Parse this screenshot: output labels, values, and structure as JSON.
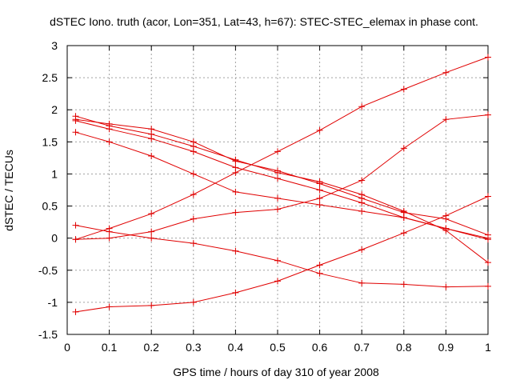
{
  "chart_data": {
    "type": "line",
    "title": "dSTEC Iono. truth (acor, Lon=351, Lat=43, h=67): STEC-STEC_elemax in phase cont.",
    "xlabel": "GPS time / hours of day 310 of year 2008",
    "ylabel": "dSTEC  / TECUs",
    "xlim": [
      0,
      1
    ],
    "ylim": [
      -1.5,
      3
    ],
    "xticks": [
      0,
      0.1,
      0.2,
      0.3,
      0.4,
      0.5,
      0.6,
      0.7,
      0.8,
      0.9,
      1
    ],
    "xtick_labels": [
      "0",
      "0.1",
      "0.2",
      "0.3",
      "0.4",
      "0.5",
      "0.6",
      "0.7",
      "0.8",
      "0.9",
      "1"
    ],
    "yticks": [
      -1.5,
      -1,
      -0.5,
      0,
      0.5,
      1,
      1.5,
      2,
      2.5,
      3
    ],
    "ytick_labels": [
      "-1.5",
      "-1",
      "-0.5",
      "0",
      "0.5",
      "1",
      "1.5",
      "2",
      "2.5",
      "3"
    ],
    "grid": true,
    "marker": "plus",
    "color": "#e00000",
    "series": [
      {
        "x": [
          0.02,
          0.1,
          0.2,
          0.3,
          0.4,
          0.5,
          0.6,
          0.7,
          0.8,
          0.9,
          1.0
        ],
        "y": [
          -0.02,
          0.15,
          0.38,
          0.68,
          1.02,
          1.35,
          1.68,
          2.05,
          2.32,
          2.58,
          2.82
        ]
      },
      {
        "x": [
          0.02,
          0.1,
          0.2,
          0.3,
          0.4,
          0.5,
          0.6,
          0.7,
          0.8,
          0.9,
          1.0
        ],
        "y": [
          -0.02,
          0.0,
          0.1,
          0.3,
          0.4,
          0.45,
          0.62,
          0.9,
          1.4,
          1.85,
          1.92
        ]
      },
      {
        "x": [
          0.02,
          0.1,
          0.2,
          0.3,
          0.4,
          0.5,
          0.6,
          0.7,
          0.8,
          0.9,
          1.0
        ],
        "y": [
          1.65,
          1.5,
          1.28,
          1.0,
          0.72,
          0.62,
          0.52,
          0.42,
          0.32,
          0.15,
          -0.02
        ]
      },
      {
        "x": [
          0.02,
          0.1,
          0.2,
          0.3,
          0.4,
          0.5,
          0.6,
          0.7,
          0.8,
          0.9,
          1.0
        ],
        "y": [
          0.2,
          0.1,
          0.0,
          -0.08,
          -0.2,
          -0.35,
          -0.55,
          -0.7,
          -0.72,
          -0.76,
          -0.75
        ]
      },
      {
        "x": [
          0.02,
          0.1,
          0.2,
          0.3,
          0.4,
          0.5,
          0.6,
          0.7,
          0.8,
          0.9,
          1.0
        ],
        "y": [
          -1.15,
          -1.07,
          -1.05,
          -1.0,
          -0.85,
          -0.67,
          -0.42,
          -0.18,
          0.08,
          0.35,
          0.65
        ]
      },
      {
        "x": [
          0.02,
          0.1,
          0.2,
          0.3,
          0.4,
          0.5,
          0.6,
          0.7,
          0.8,
          0.9,
          1.0
        ],
        "y": [
          1.9,
          1.75,
          1.62,
          1.43,
          1.22,
          1.02,
          0.88,
          0.68,
          0.42,
          0.12,
          -0.38
        ]
      },
      {
        "x": [
          0.02,
          0.1,
          0.2,
          0.3,
          0.4,
          0.5,
          0.6,
          0.7,
          0.8,
          0.9,
          1.0
        ],
        "y": [
          1.85,
          1.78,
          1.7,
          1.5,
          1.2,
          1.05,
          0.85,
          0.62,
          0.4,
          0.3,
          0.05
        ]
      },
      {
        "x": [
          0.02,
          0.1,
          0.2,
          0.3,
          0.4,
          0.5,
          0.6,
          0.7,
          0.8,
          0.9,
          1.0
        ],
        "y": [
          1.83,
          1.7,
          1.55,
          1.35,
          1.1,
          0.93,
          0.75,
          0.55,
          0.32,
          0.15,
          0.0
        ]
      }
    ]
  }
}
